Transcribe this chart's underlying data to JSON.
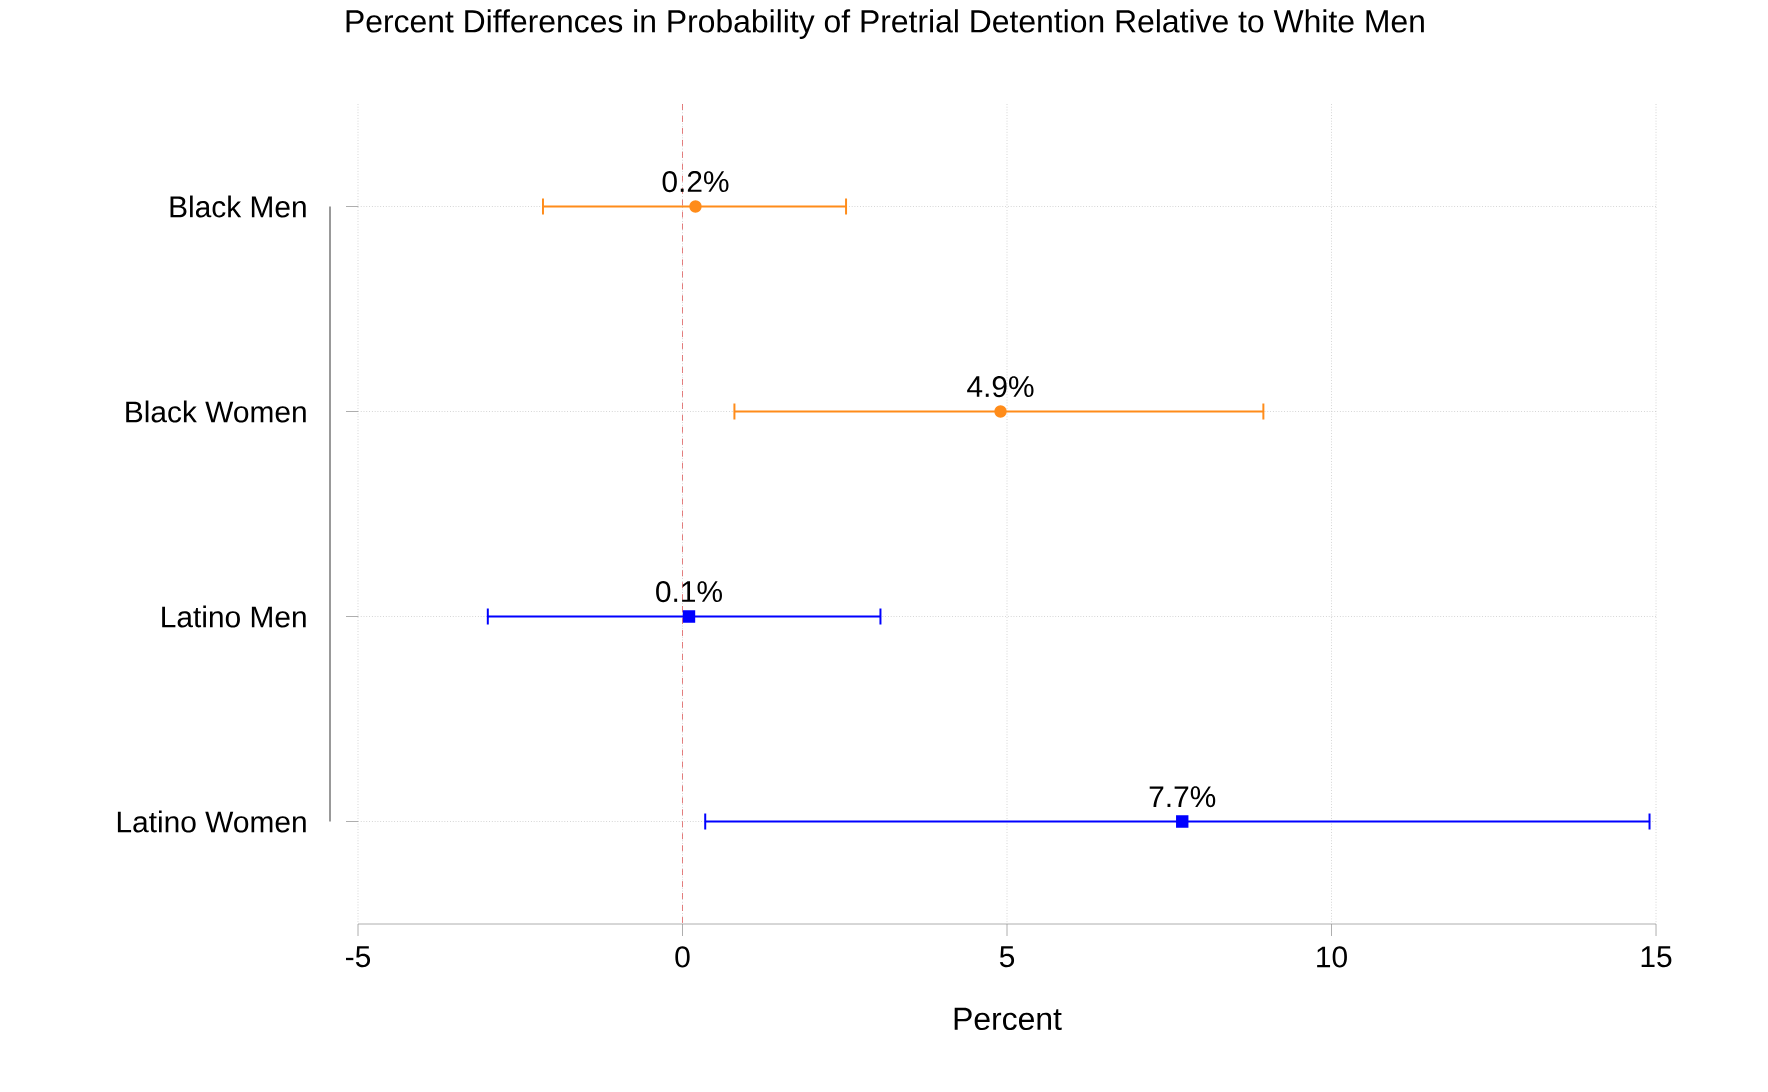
{
  "chart_data": {
    "type": "scatter",
    "orientation": "horizontal",
    "title": "Percent Differences in Probability of Pretrial Detention Relative to White Men",
    "xlabel": "Percent",
    "categories": [
      "Black Men",
      "Black Women",
      "Latino Men",
      "Latino Women"
    ],
    "series": [
      {
        "color": "#ff8c1a",
        "marker": "circle",
        "values": [
          0.2,
          4.9,
          null,
          null
        ],
        "errors": [
          [
            -2.15,
            2.52
          ],
          [
            0.8,
            8.95
          ],
          null,
          null
        ],
        "value_labels": [
          "0.2%",
          "4.9%",
          null,
          null
        ]
      },
      {
        "color": "#0000ff",
        "marker": "square",
        "values": [
          null,
          null,
          0.1,
          7.7
        ],
        "errors": [
          null,
          null,
          [
            -3.0,
            3.05
          ],
          [
            0.35,
            14.9
          ]
        ],
        "value_labels": [
          null,
          null,
          "0.1%",
          "7.7%"
        ]
      }
    ],
    "xlim": [
      -5,
      15
    ],
    "xticks": [
      -5,
      0,
      5,
      10,
      15
    ],
    "grid": true,
    "ref_lines": [
      {
        "axis": "x",
        "value": 0,
        "color": "#e06060",
        "line_style": "dashed"
      }
    ]
  }
}
